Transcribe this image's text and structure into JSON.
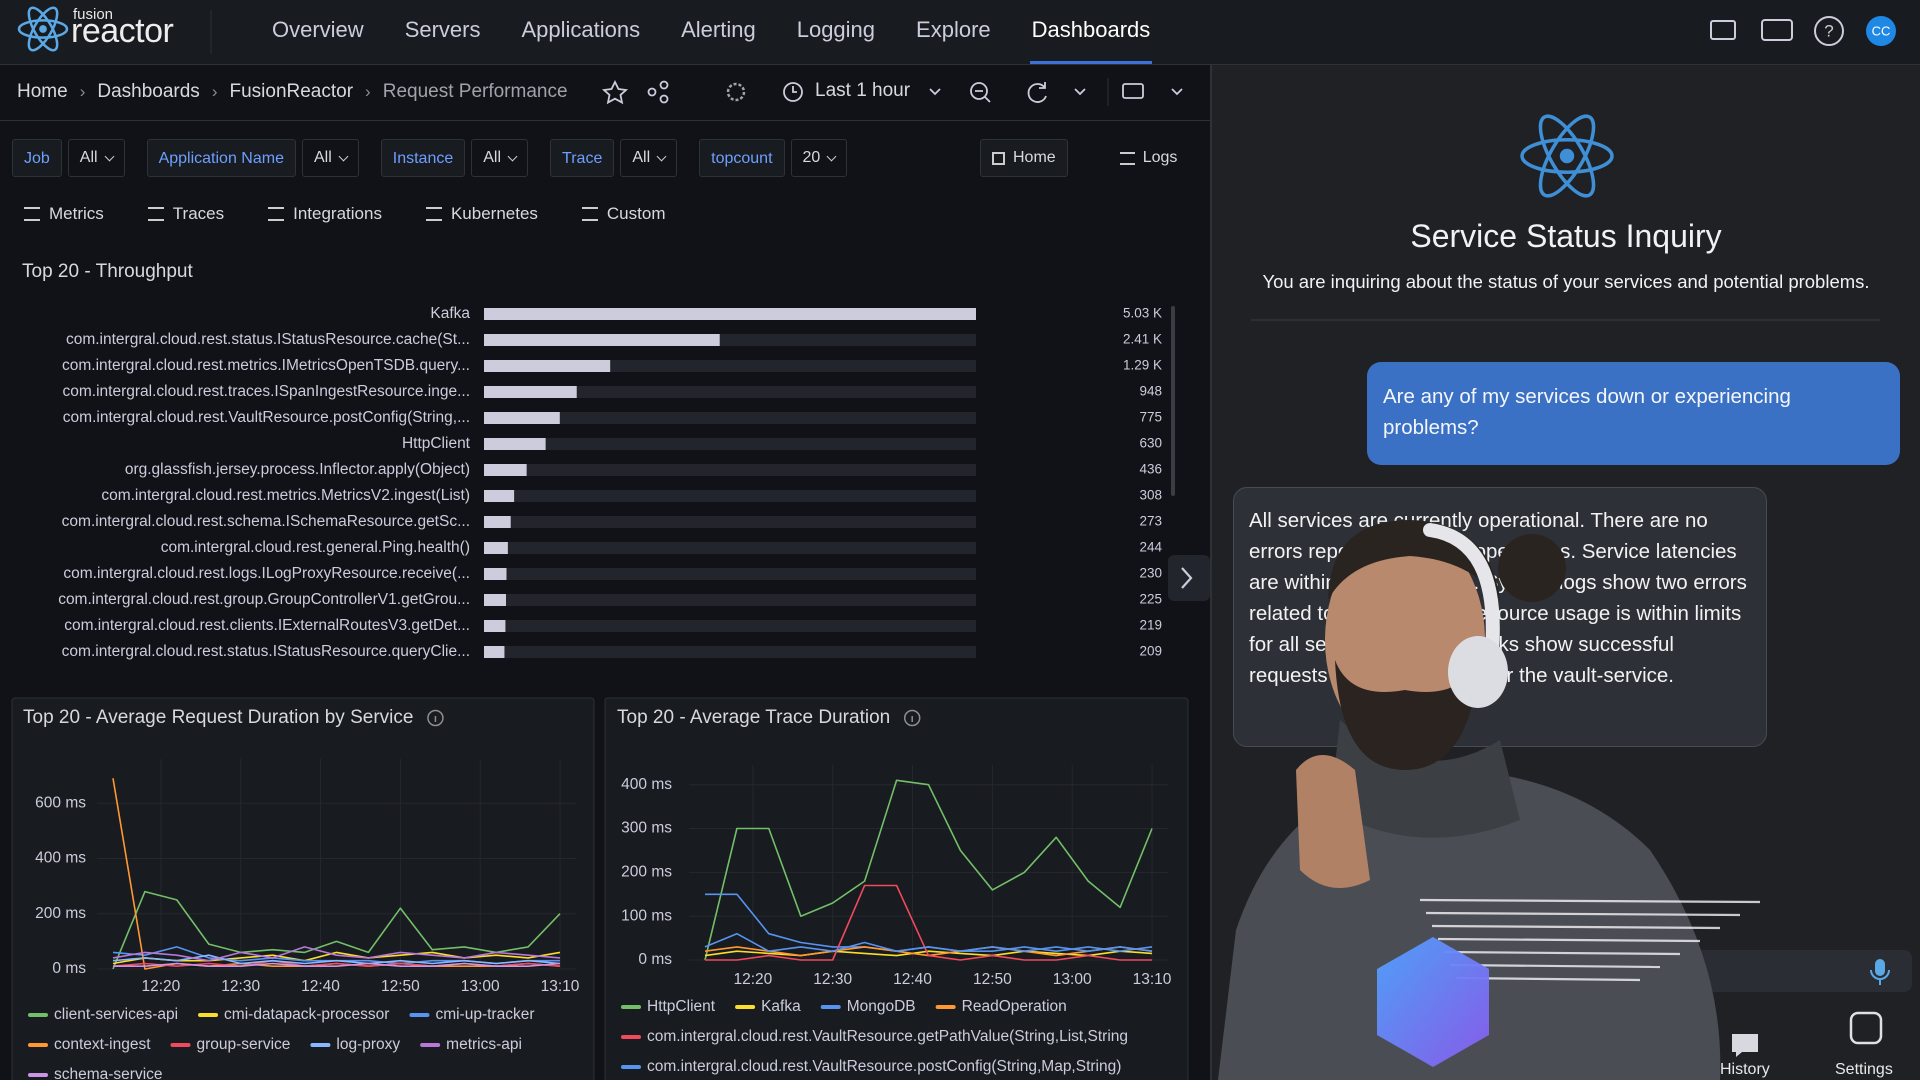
{
  "nav": {
    "logo_small": "fusion",
    "logo_main": "reactor",
    "items": [
      "Overview",
      "Servers",
      "Applications",
      "Alerting",
      "Logging",
      "Explore",
      "Dashboards"
    ],
    "active": "Dashboards",
    "avatar": "CC"
  },
  "breadcrumb": [
    "Home",
    "Dashboards",
    "FusionReactor",
    "Request Performance"
  ],
  "time_range": "Last 1 hour",
  "filters": [
    {
      "label": "Job",
      "value": "All"
    },
    {
      "label": "Application Name",
      "value": "All"
    },
    {
      "label": "Instance",
      "value": "All"
    },
    {
      "label": "Trace",
      "value": "All"
    },
    {
      "label": "topcount",
      "value": "20"
    }
  ],
  "links": [
    "Home",
    "Logs"
  ],
  "tabs": [
    "Metrics",
    "Traces",
    "Integrations",
    "Kubernetes",
    "Custom"
  ],
  "chart_data": [
    {
      "type": "bar",
      "orientation": "horizontal",
      "title": "Top 20 - Throughput",
      "color": "#ccccdc",
      "categories": [
        "Kafka",
        "com.intergral.cloud.rest.status.IStatusResource.cache(St...",
        "com.intergral.cloud.rest.metrics.IMetricsOpenTSDB.query...",
        "com.intergral.cloud.rest.traces.ISpanIngestResource.inge...",
        "com.intergral.cloud.rest.VaultResource.postConfig(String,...",
        "HttpClient",
        "org.glassfish.jersey.process.Inflector.apply(Object)",
        "com.intergral.cloud.rest.metrics.MetricsV2.ingest(List)",
        "com.intergral.cloud.rest.schema.ISchemaResource.getSc...",
        "com.intergral.cloud.rest.general.Ping.health()",
        "com.intergral.cloud.rest.logs.ILogProxyResource.receive(...",
        "com.intergral.cloud.rest.group.GroupControllerV1.getGrou...",
        "com.intergral.cloud.rest.clients.IExternalRoutesV3.getDet...",
        "com.intergral.cloud.rest.status.IStatusResource.queryClie..."
      ],
      "values": [
        5030,
        2410,
        1290,
        948,
        775,
        630,
        436,
        308,
        273,
        244,
        230,
        225,
        219,
        209
      ],
      "value_labels": [
        "5.03 K",
        "2.41 K",
        "1.29 K",
        "948",
        "775",
        "630",
        "436",
        "308",
        "273",
        "244",
        "230",
        "225",
        "219",
        "209"
      ],
      "xlim": [
        0,
        5030
      ]
    },
    {
      "type": "line",
      "title": "Top 20 - Average Request Duration by Service",
      "x": [
        "12:14",
        "12:18",
        "12:22",
        "12:26",
        "12:30",
        "12:34",
        "12:38",
        "12:42",
        "12:46",
        "12:50",
        "12:54",
        "12:58",
        "13:02",
        "13:06",
        "13:10"
      ],
      "xlim": [
        "12:12",
        "13:12"
      ],
      "xticks": [
        "12:20",
        "12:30",
        "12:40",
        "12:50",
        "13:00",
        "13:10"
      ],
      "ylim": [
        0,
        760
      ],
      "yticks": [
        {
          "value": 0,
          "label": "0 ms"
        },
        {
          "value": 200,
          "label": "200 ms"
        },
        {
          "value": 400,
          "label": "400 ms"
        },
        {
          "value": 600,
          "label": "600 ms"
        }
      ],
      "grid": true,
      "series": [
        {
          "name": "client-services-api",
          "color": "#73bf69",
          "values": [
            0,
            280,
            250,
            90,
            60,
            70,
            60,
            100,
            60,
            220,
            70,
            80,
            60,
            80,
            200
          ]
        },
        {
          "name": "cmi-datapack-processor",
          "color": "#fade2a",
          "values": [
            20,
            40,
            30,
            30,
            40,
            50,
            30,
            60,
            40,
            50,
            60,
            40,
            50,
            40,
            60
          ]
        },
        {
          "name": "cmi-up-tracker",
          "color": "#5794f2",
          "values": [
            60,
            50,
            80,
            40,
            30,
            40,
            30,
            30,
            30,
            20,
            30,
            30,
            20,
            30,
            30
          ]
        },
        {
          "name": "context-ingest",
          "color": "#ff9830",
          "values": [
            690,
            0,
            20,
            10,
            20,
            10,
            10,
            20,
            10,
            20,
            10,
            10,
            10,
            20,
            10
          ]
        },
        {
          "name": "group-service",
          "color": "#f2495c",
          "values": [
            10,
            20,
            10,
            20,
            10,
            30,
            10,
            20,
            10,
            20,
            10,
            20,
            10,
            20,
            10
          ]
        },
        {
          "name": "log-proxy",
          "color": "#8ab8ff",
          "values": [
            30,
            40,
            30,
            50,
            20,
            30,
            20,
            30,
            20,
            30,
            20,
            30,
            20,
            30,
            20
          ]
        },
        {
          "name": "metrics-api",
          "color": "#b877d9",
          "values": [
            40,
            60,
            50,
            30,
            60,
            40,
            80,
            50,
            40,
            60,
            50,
            40,
            60,
            50,
            40
          ]
        },
        {
          "name": "schema-service",
          "color": "#ca95e5",
          "values": [
            10,
            10,
            20,
            10,
            10,
            20,
            10,
            10,
            20,
            10,
            10,
            20,
            10,
            10,
            20
          ]
        }
      ]
    },
    {
      "type": "line",
      "title": "Top 20 - Average Trace Duration",
      "x": [
        "12:14",
        "12:18",
        "12:22",
        "12:26",
        "12:30",
        "12:34",
        "12:38",
        "12:42",
        "12:46",
        "12:50",
        "12:54",
        "12:58",
        "13:02",
        "13:06",
        "13:10"
      ],
      "xlim": [
        "12:12",
        "13:12"
      ],
      "xticks": [
        "12:20",
        "12:30",
        "12:40",
        "12:50",
        "13:00",
        "13:10"
      ],
      "ylim": [
        0,
        445
      ],
      "yticks": [
        {
          "value": 0,
          "label": "0 ms"
        },
        {
          "value": 100,
          "label": "100 ms"
        },
        {
          "value": 200,
          "label": "200 ms"
        },
        {
          "value": 300,
          "label": "300 ms"
        },
        {
          "value": 400,
          "label": "400 ms"
        }
      ],
      "grid": true,
      "series": [
        {
          "name": "HttpClient",
          "color": "#73bf69",
          "values": [
            0,
            300,
            300,
            100,
            130,
            180,
            410,
            400,
            250,
            160,
            200,
            280,
            180,
            120,
            300
          ]
        },
        {
          "name": "Kafka",
          "color": "#fade2a",
          "values": [
            10,
            20,
            15,
            10,
            20,
            15,
            10,
            20,
            15,
            10,
            20,
            15,
            10,
            20,
            15
          ]
        },
        {
          "name": "MongoDB",
          "color": "#5794f2",
          "values": [
            150,
            150,
            60,
            40,
            30,
            30,
            20,
            30,
            20,
            20,
            30,
            20,
            30,
            20,
            30
          ]
        },
        {
          "name": "ReadOperation",
          "color": "#ff9830",
          "values": [
            20,
            30,
            20,
            10,
            20,
            30,
            20,
            10,
            20,
            30,
            20,
            10,
            20,
            30,
            20
          ]
        },
        {
          "name": "com.intergral.cloud.rest.VaultResource.getPathValue(String,List,String",
          "color": "#f2495c",
          "values": [
            0,
            0,
            10,
            0,
            0,
            170,
            170,
            10,
            0,
            10,
            0,
            0,
            10,
            0,
            0
          ]
        },
        {
          "name": "com.intergral.cloud.rest.VaultResource.postConfig(String,Map,String)",
          "color": "#5794f2",
          "values": [
            30,
            60,
            20,
            30,
            20,
            40,
            20,
            30,
            20,
            30,
            20,
            30,
            20,
            30,
            20
          ]
        }
      ]
    }
  ],
  "chat": {
    "title": "Service Status Inquiry",
    "subtitle": "You are inquiring about the status of your services and potential problems.",
    "user_message": "Are any of my services down or experiencing problems?",
    "assistant_message": "All services are currently operational. There are no errors reported in recent operations. Service latencies are within normal ranges. System logs show two errors related to connections. Resource usage is within limits for all services. Status checks show successful requests with a few errors for the vault-service."
  },
  "bottom_nav": [
    "History",
    "Settings"
  ]
}
